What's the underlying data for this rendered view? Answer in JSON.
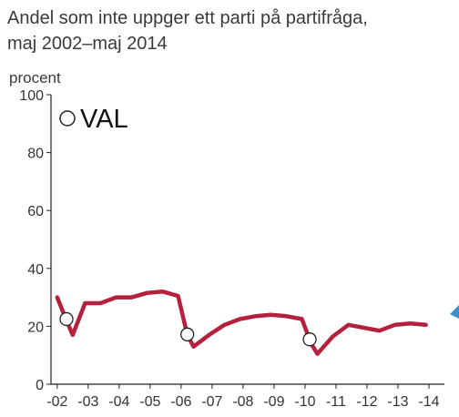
{
  "title_line1": "Andel som inte uppger ett parti på partifråga,",
  "title_line2": "maj 2002–maj 2014",
  "unit": "procent",
  "legend_label": "VAL",
  "colors": {
    "line": "#b5203c",
    "axis": "#222222",
    "marker_fill": "#ffffff",
    "tick_text": "#333333",
    "accent": "#3a8fc9"
  },
  "chart_data": {
    "type": "line",
    "title": "Andel som inte uppger ett parti på partifråga, maj 2002–maj 2014",
    "ylabel": "procent",
    "xlabel": "",
    "ylim": [
      0,
      100
    ],
    "xlim": [
      2001.8,
      2014.5
    ],
    "yticks": [
      0,
      20,
      40,
      60,
      80,
      100
    ],
    "xticks": [
      {
        "x": 2002,
        "label": "-02"
      },
      {
        "x": 2003,
        "label": "-03"
      },
      {
        "x": 2004,
        "label": "-04"
      },
      {
        "x": 2005,
        "label": "-05"
      },
      {
        "x": 2006,
        "label": "-06"
      },
      {
        "x": 2007,
        "label": "-07"
      },
      {
        "x": 2008,
        "label": "-08"
      },
      {
        "x": 2009,
        "label": "-09"
      },
      {
        "x": 2010,
        "label": "-10"
      },
      {
        "x": 2011,
        "label": "-11"
      },
      {
        "x": 2012,
        "label": "-12"
      },
      {
        "x": 2013,
        "label": "-13"
      },
      {
        "x": 2014,
        "label": "-14"
      }
    ],
    "series": [
      {
        "points": [
          [
            2002.0,
            30
          ],
          [
            2002.3,
            22
          ],
          [
            2002.5,
            17
          ],
          [
            2002.9,
            28
          ],
          [
            2003.4,
            28
          ],
          [
            2003.9,
            30
          ],
          [
            2004.4,
            30
          ],
          [
            2004.9,
            31.5
          ],
          [
            2005.4,
            32
          ],
          [
            2005.9,
            30.5
          ],
          [
            2006.2,
            17
          ],
          [
            2006.4,
            13
          ],
          [
            2006.9,
            17
          ],
          [
            2007.4,
            20.5
          ],
          [
            2007.9,
            22.5
          ],
          [
            2008.4,
            23.5
          ],
          [
            2008.9,
            24
          ],
          [
            2009.4,
            23.5
          ],
          [
            2009.9,
            22.5
          ],
          [
            2010.2,
            14
          ],
          [
            2010.4,
            10.5
          ],
          [
            2010.9,
            16.5
          ],
          [
            2011.4,
            20.5
          ],
          [
            2011.9,
            19.5
          ],
          [
            2012.4,
            18.5
          ],
          [
            2012.9,
            20.5
          ],
          [
            2013.4,
            21
          ],
          [
            2013.9,
            20.5
          ]
        ]
      }
    ],
    "election_markers": [
      {
        "x": 2002.3,
        "y": 22.5
      },
      {
        "x": 2006.2,
        "y": 17.2
      },
      {
        "x": 2010.15,
        "y": 15.5
      }
    ],
    "legend": "top-left",
    "grid": false
  }
}
